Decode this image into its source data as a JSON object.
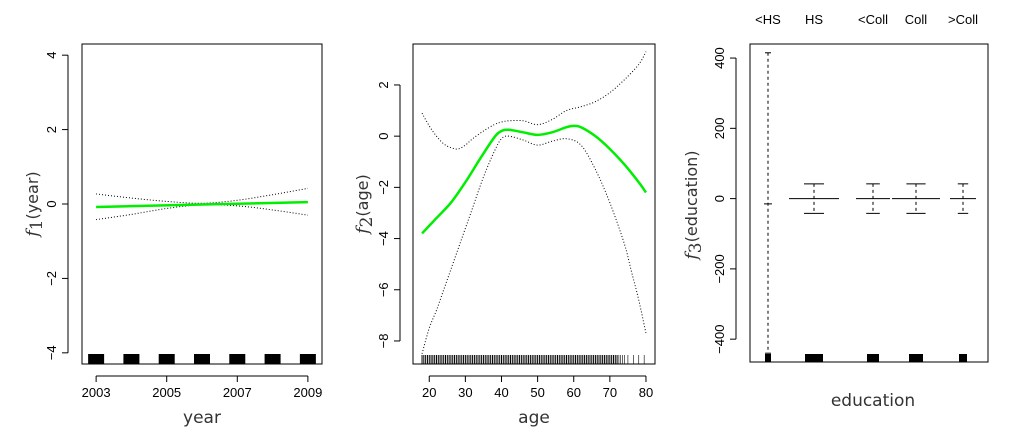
{
  "chart_data": [
    {
      "type": "line",
      "panel": "year",
      "xlabel": "year",
      "ylabel_fn": "f",
      "ylabel_sub": "1",
      "ylabel_arg": "(year)",
      "xlim": [
        2002.6,
        2009.4
      ],
      "ylim": [
        -4.3,
        4.3
      ],
      "xticks": [
        2003,
        2005,
        2007,
        2009
      ],
      "yticks": [
        -4,
        -2,
        0,
        2,
        4
      ],
      "ytick_labels": [
        "−4",
        "−2",
        "0",
        "2",
        "4"
      ],
      "series": [
        {
          "name": "fit",
          "color": "#00ee00",
          "x": [
            2003,
            2009
          ],
          "y": [
            -0.08,
            0.05
          ]
        },
        {
          "name": "upper",
          "dash": true,
          "x": [
            2003,
            2004,
            2005,
            2006,
            2007,
            2008,
            2009
          ],
          "y": [
            0.27,
            0.16,
            0.07,
            0.02,
            0.1,
            0.25,
            0.42
          ]
        },
        {
          "name": "lower",
          "dash": true,
          "x": [
            2003,
            2004,
            2005,
            2006,
            2007,
            2008,
            2009
          ],
          "y": [
            -0.42,
            -0.28,
            -0.12,
            -0.02,
            -0.05,
            -0.16,
            -0.3
          ]
        }
      ],
      "rug": [
        2003,
        2004,
        2005,
        2006,
        2007,
        2008,
        2009
      ]
    },
    {
      "type": "line",
      "panel": "age",
      "xlabel": "age",
      "ylabel_fn": "f",
      "ylabel_sub": "2",
      "ylabel_arg": "(age)",
      "xlim": [
        15.5,
        82.5
      ],
      "ylim": [
        -8.9,
        3.6
      ],
      "xticks": [
        20,
        30,
        40,
        50,
        60,
        70,
        80
      ],
      "yticks": [
        -8,
        -6,
        -4,
        -2,
        0,
        2
      ],
      "ytick_labels": [
        "−8",
        "−6",
        "−4",
        "−2",
        "0",
        "2"
      ],
      "series": [
        {
          "name": "fit",
          "color": "#00ee00",
          "x": [
            18,
            22,
            26,
            30,
            34,
            38,
            40,
            42,
            46,
            50,
            54,
            58,
            60,
            62,
            66,
            70,
            74,
            78,
            80
          ],
          "y": [
            -3.8,
            -3.2,
            -2.6,
            -1.8,
            -0.9,
            -0.05,
            0.2,
            0.25,
            0.15,
            0.05,
            0.15,
            0.35,
            0.4,
            0.35,
            0.0,
            -0.5,
            -1.1,
            -1.8,
            -2.2
          ]
        },
        {
          "name": "upper",
          "dash": true,
          "x": [
            18,
            20,
            22,
            24,
            26,
            28,
            30,
            32,
            35,
            38,
            40,
            42,
            46,
            50,
            54,
            58,
            62,
            66,
            70,
            74,
            78,
            80
          ],
          "y": [
            0.9,
            0.4,
            0.0,
            -0.3,
            -0.45,
            -0.5,
            -0.35,
            -0.1,
            0.2,
            0.45,
            0.55,
            0.6,
            0.6,
            0.45,
            0.65,
            1.0,
            1.15,
            1.35,
            1.7,
            2.2,
            2.8,
            3.3
          ]
        },
        {
          "name": "lower",
          "dash": true,
          "x": [
            18,
            20,
            22,
            24,
            26,
            28,
            30,
            32,
            35,
            38,
            40,
            42,
            46,
            50,
            54,
            58,
            62,
            66,
            70,
            74,
            76,
            78,
            80
          ],
          "y": [
            -8.5,
            -7.5,
            -6.8,
            -6.0,
            -5.2,
            -4.4,
            -3.6,
            -2.8,
            -1.6,
            -0.6,
            -0.1,
            0.0,
            -0.15,
            -0.35,
            -0.2,
            -0.1,
            -0.35,
            -1.3,
            -2.6,
            -4.2,
            -5.3,
            -6.4,
            -7.7
          ]
        }
      ],
      "rug_range": [
        18,
        80
      ]
    },
    {
      "type": "bar",
      "panel": "education",
      "xlabel": "education",
      "ylabel_fn": "f",
      "ylabel_sub": "3",
      "ylabel_arg": "(education)",
      "categories": [
        "<HS",
        "HS",
        "<Coll",
        "Coll",
        ">Coll"
      ],
      "ylim": [
        -465,
        440
      ],
      "yticks": [
        -400,
        -200,
        0,
        200,
        400
      ],
      "ytick_labels": [
        "−400",
        "−200",
        "0",
        "200",
        "400"
      ],
      "estimates": [
        -15,
        0,
        0,
        0,
        0
      ],
      "upper": [
        415,
        42,
        42,
        42,
        42
      ],
      "lower": [
        -440,
        -42,
        -42,
        -42,
        -42
      ],
      "rug_weights": [
        1,
        3,
        2,
        2,
        1
      ]
    }
  ]
}
